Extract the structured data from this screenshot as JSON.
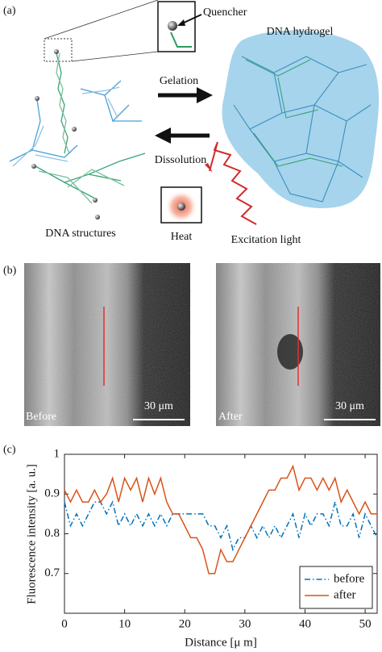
{
  "panel_a": {
    "label": "(a)",
    "quencher": "Quencher",
    "hydrogel": "DNA hydrogel",
    "gelation": "Gelation",
    "dissolution": "Dissolution",
    "structures": "DNA structures",
    "heat": "Heat",
    "excitation": "Excitation light"
  },
  "panel_b": {
    "label": "(b)",
    "images": [
      {
        "caption": "Before",
        "scale": "30 μm"
      },
      {
        "caption": "After",
        "scale": "30 μm"
      }
    ]
  },
  "panel_c": {
    "label": "(c)"
  },
  "chart_data": {
    "type": "line",
    "xlabel": "Distance [μ m]",
    "ylabel": "Fluorescence intensity [a. u.]",
    "x": [
      0,
      1,
      2,
      3,
      4,
      5,
      6,
      7,
      8,
      9,
      10,
      11,
      12,
      13,
      14,
      15,
      16,
      17,
      18,
      19,
      20,
      21,
      22,
      23,
      24,
      25,
      26,
      27,
      28,
      29,
      30,
      31,
      32,
      33,
      34,
      35,
      36,
      37,
      38,
      39,
      40,
      41,
      42,
      43,
      44,
      45,
      46,
      47,
      48,
      49,
      50,
      51,
      52
    ],
    "series": [
      {
        "name": "before",
        "color": "#0072bd",
        "style": "dashdot",
        "values": [
          0.88,
          0.82,
          0.85,
          0.82,
          0.85,
          0.88,
          0.88,
          0.85,
          0.88,
          0.82,
          0.85,
          0.82,
          0.85,
          0.82,
          0.85,
          0.82,
          0.85,
          0.82,
          0.85,
          0.85,
          0.85,
          0.85,
          0.85,
          0.85,
          0.82,
          0.82,
          0.79,
          0.82,
          0.76,
          0.79,
          0.79,
          0.82,
          0.79,
          0.82,
          0.79,
          0.82,
          0.79,
          0.82,
          0.85,
          0.79,
          0.85,
          0.82,
          0.85,
          0.85,
          0.82,
          0.88,
          0.82,
          0.82,
          0.85,
          0.79,
          0.85,
          0.82,
          0.79
        ]
      },
      {
        "name": "after",
        "color": "#d95319",
        "style": "solid",
        "values": [
          0.91,
          0.88,
          0.91,
          0.88,
          0.88,
          0.91,
          0.88,
          0.9,
          0.94,
          0.88,
          0.94,
          0.91,
          0.94,
          0.88,
          0.94,
          0.9,
          0.94,
          0.88,
          0.85,
          0.85,
          0.82,
          0.79,
          0.79,
          0.76,
          0.7,
          0.7,
          0.76,
          0.73,
          0.73,
          0.76,
          0.79,
          0.82,
          0.85,
          0.88,
          0.91,
          0.91,
          0.94,
          0.94,
          0.97,
          0.91,
          0.94,
          0.94,
          0.91,
          0.94,
          0.91,
          0.94,
          0.88,
          0.91,
          0.88,
          0.85,
          0.88,
          0.85,
          0.85
        ]
      }
    ],
    "xlim": [
      0,
      52
    ],
    "ylim": [
      0.6,
      1
    ],
    "xticks": [
      0,
      10,
      20,
      30,
      40,
      50
    ],
    "yticks": [
      0.7,
      0.8,
      0.9,
      1
    ],
    "legend": "lower right"
  }
}
